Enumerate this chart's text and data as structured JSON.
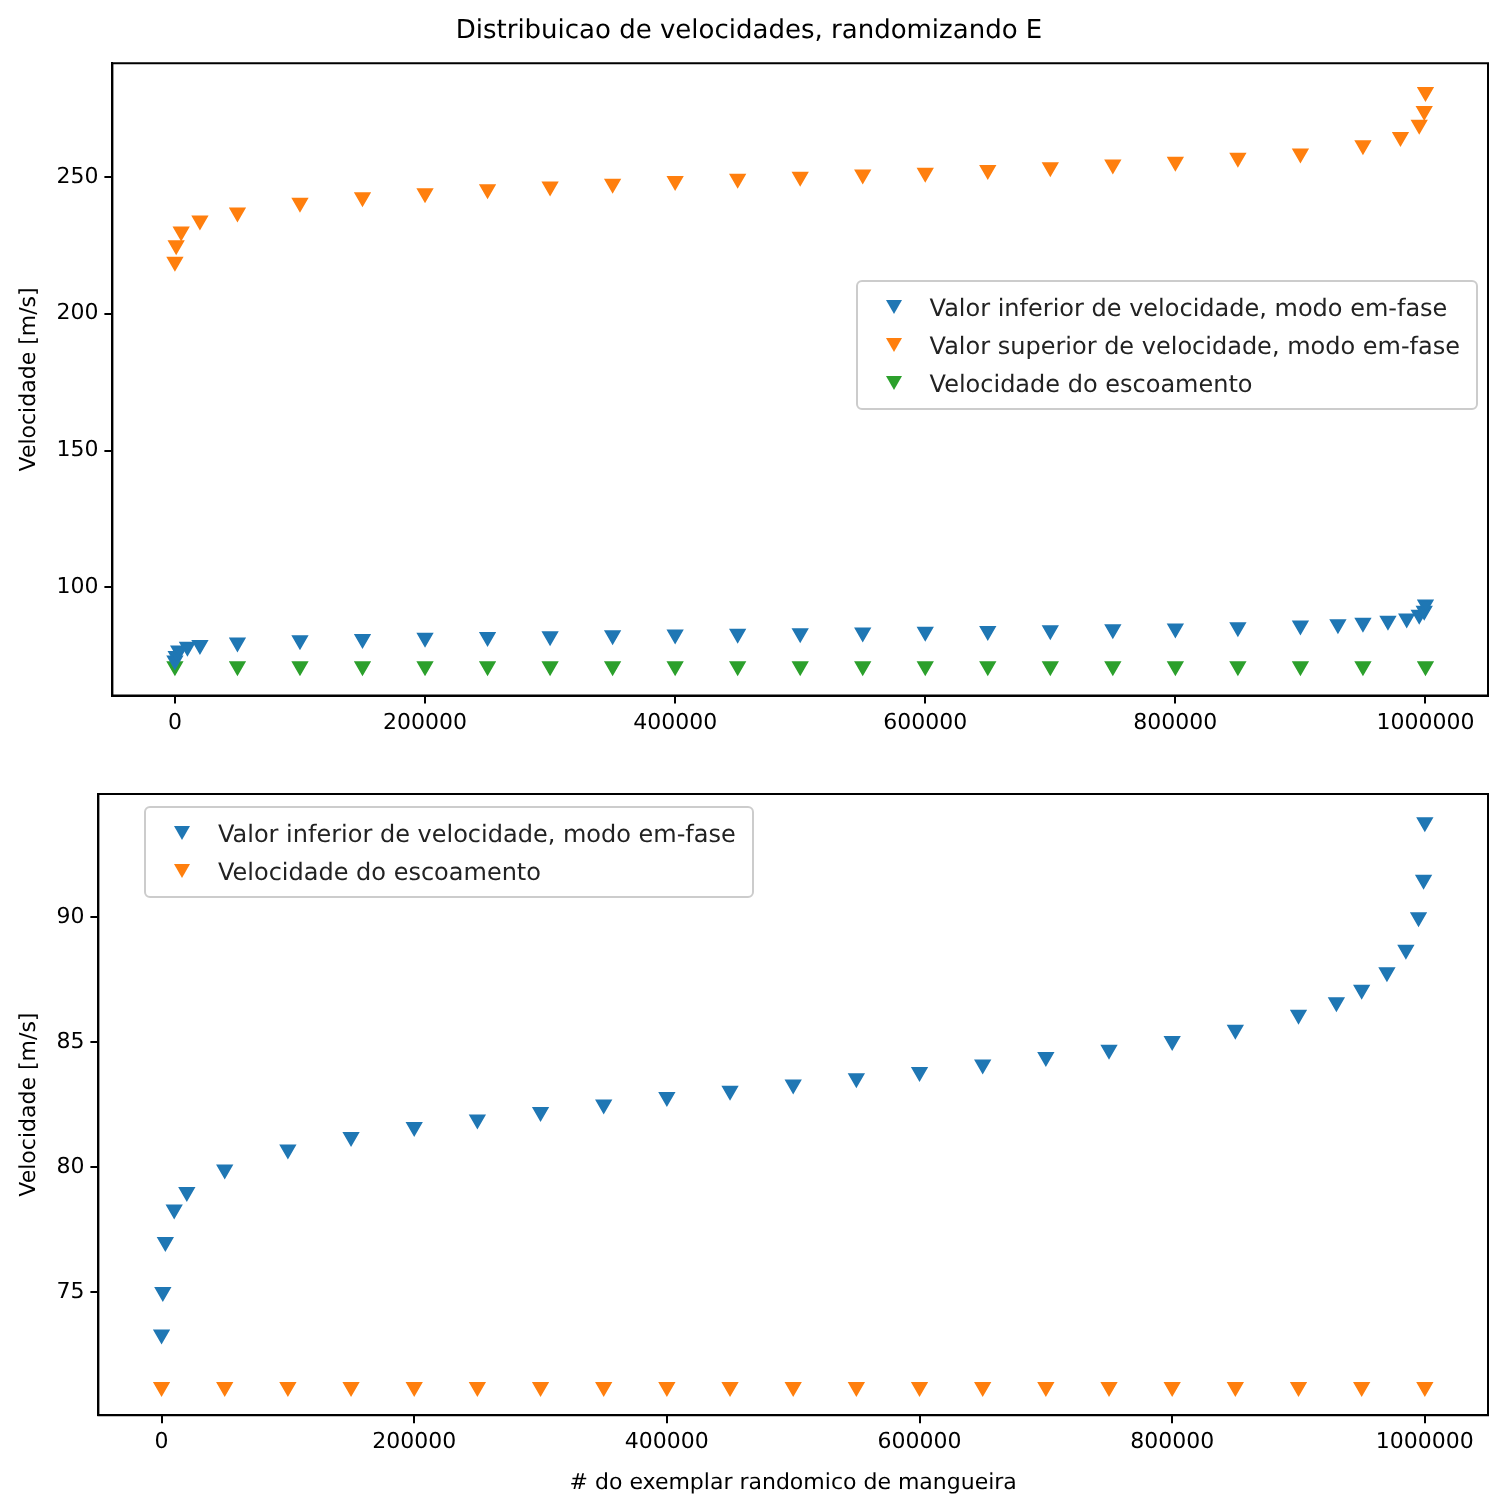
{
  "chart_data": [
    {
      "type": "scatter",
      "title": "Distribuicao de velocidades, randomizando E",
      "ylabel": "Velocidade [m/s]",
      "xlim": [
        -50000,
        1050000
      ],
      "xticks": [
        0,
        200000,
        400000,
        600000,
        800000,
        1000000
      ],
      "ylim": [
        60.5,
        291.5
      ],
      "yticks": [
        100,
        150,
        200,
        250
      ],
      "grid": false,
      "legend": "right",
      "marker": "triangle",
      "series": [
        {
          "name": "Valor inferior de velocidade, modo em-fase",
          "color": "#1f77b4",
          "x": [
            0,
            1000,
            3000,
            10000,
            20000,
            50000,
            100000,
            150000,
            200000,
            250000,
            300000,
            350000,
            400000,
            450000,
            500000,
            550000,
            600000,
            650000,
            700000,
            750000,
            800000,
            850000,
            900000,
            930000,
            950000,
            970000,
            985000,
            995000,
            999000,
            1000000
          ],
          "values": [
            73.3,
            75,
            77,
            78.3,
            79,
            79.9,
            80.7,
            81.2,
            81.6,
            81.9,
            82.2,
            82.5,
            82.8,
            83.05,
            83.3,
            83.55,
            83.8,
            84.1,
            84.4,
            84.7,
            85.05,
            85.5,
            86.1,
            86.6,
            87.1,
            87.8,
            88.7,
            90,
            91.5,
            93.8
          ]
        },
        {
          "name": "Valor superior de velocidade, modo em-fase",
          "color": "#ff7f0e",
          "x": [
            0,
            1000,
            5000,
            20000,
            50000,
            100000,
            150000,
            200000,
            250000,
            300000,
            350000,
            400000,
            450000,
            500000,
            550000,
            600000,
            650000,
            700000,
            750000,
            800000,
            850000,
            900000,
            950000,
            980000,
            995000,
            999000,
            1000000
          ],
          "values": [
            219,
            225,
            230,
            234,
            237,
            240.5,
            242.5,
            244,
            245.5,
            246.5,
            247.5,
            248.5,
            249.3,
            250,
            250.8,
            251.5,
            252.5,
            253.5,
            254.5,
            255.5,
            257,
            258.5,
            261.5,
            264.5,
            269,
            274,
            281
          ]
        },
        {
          "name": "Velocidade do escoamento",
          "color": "#2ca02c",
          "x": [
            0,
            50000,
            100000,
            150000,
            200000,
            250000,
            300000,
            350000,
            400000,
            450000,
            500000,
            550000,
            600000,
            650000,
            700000,
            750000,
            800000,
            850000,
            900000,
            950000,
            1000000
          ],
          "values": [
            71.2,
            71.2,
            71.2,
            71.2,
            71.2,
            71.2,
            71.2,
            71.2,
            71.2,
            71.2,
            71.2,
            71.2,
            71.2,
            71.2,
            71.2,
            71.2,
            71.2,
            71.2,
            71.2,
            71.2,
            71.2
          ]
        }
      ]
    },
    {
      "type": "scatter",
      "xlabel": "# do exemplar randomico de mangueira",
      "ylabel": "Velocidade [m/s]",
      "xlim": [
        -50000,
        1050000
      ],
      "xticks": [
        0,
        200000,
        400000,
        600000,
        800000,
        1000000
      ],
      "ylim": [
        70.07,
        94.93
      ],
      "yticks": [
        75,
        80,
        85,
        90
      ],
      "grid": false,
      "legend": "top left",
      "marker": "triangle",
      "series": [
        {
          "name": "Valor inferior de velocidade, modo em-fase",
          "color": "#1f77b4",
          "x": [
            0,
            1000,
            3000,
            10000,
            20000,
            50000,
            100000,
            150000,
            200000,
            250000,
            300000,
            350000,
            400000,
            450000,
            500000,
            550000,
            600000,
            650000,
            700000,
            750000,
            800000,
            850000,
            900000,
            930000,
            950000,
            970000,
            985000,
            995000,
            999000,
            1000000
          ],
          "values": [
            73.3,
            75,
            77,
            78.3,
            79,
            79.9,
            80.7,
            81.2,
            81.6,
            81.9,
            82.2,
            82.5,
            82.8,
            83.05,
            83.3,
            83.55,
            83.8,
            84.1,
            84.4,
            84.7,
            85.05,
            85.5,
            86.1,
            86.6,
            87.1,
            87.8,
            88.7,
            90,
            91.5,
            93.8
          ]
        },
        {
          "name": "Velocidade do escoamento",
          "color": "#ff7f0e",
          "x": [
            0,
            50000,
            100000,
            150000,
            200000,
            250000,
            300000,
            350000,
            400000,
            450000,
            500000,
            550000,
            600000,
            650000,
            700000,
            750000,
            800000,
            850000,
            900000,
            950000,
            1000000
          ],
          "values": [
            71.2,
            71.2,
            71.2,
            71.2,
            71.2,
            71.2,
            71.2,
            71.2,
            71.2,
            71.2,
            71.2,
            71.2,
            71.2,
            71.2,
            71.2,
            71.2,
            71.2,
            71.2,
            71.2,
            71.2,
            71.2
          ]
        }
      ]
    }
  ]
}
